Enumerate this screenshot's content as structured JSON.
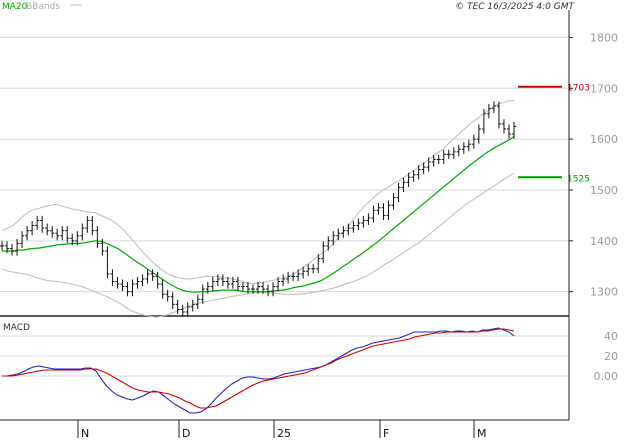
{
  "header": {
    "legend_ma": "MA20",
    "legend_bb": "BBands",
    "copyright": "© TEC 16/3/2025 4:0 GMT"
  },
  "colors": {
    "price": "#111111",
    "ma": "#00aa00",
    "bands": "#bbbbbb",
    "resistance": "#cc0000",
    "support": "#009900",
    "macd": "#2222cc",
    "signal": "#cc0000",
    "grid": "#d8d8d8",
    "axis_text": "#9a9a9a"
  },
  "chart_data": [
    {
      "type": "line",
      "panel": "price",
      "subtype": "ohlc-bars",
      "ylim": [
        1260,
        1850
      ],
      "yticks": [
        "1300",
        "1400",
        "1500",
        "1600",
        "1700",
        "1800"
      ],
      "xticks": [
        "N",
        "D",
        "25",
        "F",
        "M"
      ],
      "levels": [
        {
          "name": "resistance",
          "value": 1703,
          "label": "1703"
        },
        {
          "name": "support",
          "value": 1525,
          "label": "1525"
        }
      ],
      "series": [
        {
          "values": [
            1390,
            1385,
            1380,
            1395,
            1410,
            1420,
            1430,
            1440,
            1425,
            1420,
            1415,
            1410,
            1420,
            1405,
            1400,
            1410,
            1425,
            1440,
            1420,
            1395,
            1380,
            1335,
            1320,
            1315,
            1310,
            1300,
            1315,
            1320,
            1325,
            1335,
            1330,
            1315,
            1295,
            1290,
            1275,
            1265,
            1260,
            1270,
            1275,
            1285,
            1305,
            1310,
            1320,
            1325,
            1320,
            1315,
            1320,
            1310,
            1310,
            1305,
            1305,
            1310,
            1305,
            1300,
            1310,
            1320,
            1325,
            1330,
            1330,
            1335,
            1340,
            1345,
            1345,
            1365,
            1390,
            1400,
            1410,
            1415,
            1420,
            1425,
            1430,
            1435,
            1440,
            1445,
            1460,
            1465,
            1450,
            1470,
            1485,
            1505,
            1515,
            1525,
            1530,
            1540,
            1545,
            1555,
            1560,
            1560,
            1570,
            1570,
            1575,
            1580,
            1585,
            1590,
            1600,
            1620,
            1650,
            1660,
            1665,
            1630,
            1620,
            1610,
            1625
          ]
        },
        {
          "name": "MA20",
          "values": [
            1380,
            1380,
            1380,
            1382,
            1382,
            1384,
            1385,
            1386,
            1388,
            1390,
            1392,
            1393,
            1394,
            1395,
            1395,
            1396,
            1398,
            1400,
            1399,
            1395,
            1390,
            1385,
            1378,
            1370,
            1362,
            1355,
            1348,
            1340,
            1333,
            1325,
            1318,
            1312,
            1306,
            1302,
            1300,
            1299,
            1300,
            1300,
            1301,
            1302,
            1303,
            1303,
            1303,
            1302,
            1300,
            1300,
            1300,
            1300,
            1300,
            1301,
            1302,
            1303,
            1305,
            1308,
            1310,
            1312,
            1315,
            1318,
            1322,
            1328,
            1335,
            1342,
            1350,
            1357,
            1365,
            1372,
            1380,
            1388,
            1396,
            1405,
            1414,
            1423,
            1432,
            1441,
            1450,
            1459,
            1468,
            1477,
            1486,
            1495,
            1504,
            1513,
            1522,
            1531,
            1540,
            1549,
            1557,
            1565,
            1573,
            1580,
            1586,
            1592,
            1598,
            1605
          ]
        },
        {
          "name": "BBands upper",
          "values": [
            1420,
            1425,
            1430,
            1440,
            1450,
            1458,
            1462,
            1465,
            1468,
            1470,
            1472,
            1468,
            1465,
            1462,
            1460,
            1458,
            1456,
            1455,
            1450,
            1445,
            1440,
            1432,
            1422,
            1410,
            1398,
            1385,
            1373,
            1362,
            1352,
            1343,
            1336,
            1331,
            1327,
            1325,
            1325,
            1326,
            1328,
            1330,
            1330,
            1330,
            1328,
            1326,
            1325,
            1322,
            1318,
            1316,
            1316,
            1318,
            1320,
            1322,
            1324,
            1326,
            1330,
            1335,
            1342,
            1350,
            1358,
            1366,
            1374,
            1382,
            1392,
            1405,
            1418,
            1430,
            1445,
            1458,
            1470,
            1480,
            1490,
            1498,
            1505,
            1512,
            1518,
            1525,
            1532,
            1540,
            1548,
            1556,
            1564,
            1572,
            1580,
            1590,
            1600,
            1610,
            1620,
            1630,
            1638,
            1646,
            1654,
            1662,
            1668,
            1672,
            1675,
            1676
          ]
        },
        {
          "name": "BBands lower",
          "values": [
            1345,
            1340,
            1338,
            1336,
            1334,
            1330,
            1326,
            1323,
            1321,
            1320,
            1318,
            1316,
            1313,
            1310,
            1305,
            1300,
            1295,
            1290,
            1284,
            1278,
            1270,
            1262,
            1258,
            1254,
            1252,
            1250,
            1252,
            1255,
            1260,
            1265,
            1270,
            1275,
            1278,
            1280,
            1283,
            1285,
            1287,
            1290,
            1292,
            1294,
            1296,
            1298,
            1298,
            1298,
            1297,
            1296,
            1295,
            1295,
            1295,
            1296,
            1298,
            1300,
            1302,
            1305,
            1308,
            1312,
            1316,
            1320,
            1325,
            1330,
            1337,
            1345,
            1353,
            1360,
            1368,
            1376,
            1384,
            1392,
            1400,
            1410,
            1420,
            1430,
            1440,
            1450,
            1460,
            1470,
            1478,
            1486,
            1494,
            1502,
            1510,
            1518,
            1526,
            1533
          ]
        }
      ]
    },
    {
      "type": "line",
      "panel": "macd",
      "title": "MACD",
      "ylim": [
        -42,
        58
      ],
      "yticks": [
        "0.00",
        "20",
        "40"
      ],
      "series": [
        {
          "values": [
            0,
            0,
            1,
            2,
            4,
            7,
            9,
            10,
            9,
            8,
            7,
            7,
            7,
            7,
            7,
            7,
            8,
            8,
            5,
            -3,
            -10,
            -15,
            -19,
            -21,
            -23,
            -24,
            -22,
            -20,
            -17,
            -15,
            -16,
            -20,
            -24,
            -28,
            -31,
            -34,
            -37,
            -37,
            -36,
            -33,
            -28,
            -22,
            -17,
            -12,
            -8,
            -5,
            -2,
            -1,
            -1,
            -2,
            -3,
            -3,
            -2,
            0,
            2,
            3,
            4,
            5,
            6,
            7,
            8,
            9,
            11,
            14,
            17,
            20,
            23,
            26,
            28,
            29,
            31,
            33,
            34,
            35,
            36,
            37,
            38,
            40,
            42,
            44,
            44,
            44,
            44,
            44,
            45,
            45,
            44,
            45,
            45,
            44,
            45,
            44,
            46,
            46,
            47,
            48,
            46,
            44,
            40
          ]
        },
        {
          "values": [
            0,
            0,
            0,
            1,
            2,
            3,
            4,
            5,
            6,
            6,
            6,
            6,
            6,
            6,
            6,
            6,
            7,
            7,
            7,
            5,
            3,
            0,
            -3,
            -6,
            -9,
            -12,
            -14,
            -15,
            -16,
            -16,
            -16,
            -17,
            -18,
            -20,
            -22,
            -25,
            -27,
            -30,
            -32,
            -32,
            -31,
            -30,
            -27,
            -24,
            -21,
            -18,
            -15,
            -12,
            -9,
            -7,
            -5,
            -4,
            -3,
            -2,
            -1,
            0,
            1,
            2,
            3,
            5,
            7,
            9,
            11,
            13,
            16,
            18,
            20,
            22,
            24,
            26,
            28,
            30,
            31,
            32,
            33,
            34,
            35,
            36,
            37,
            39,
            40,
            41,
            42,
            43,
            43,
            44,
            44,
            44,
            44,
            44,
            44,
            44,
            45,
            45,
            46,
            47,
            47,
            46,
            45
          ]
        }
      ]
    }
  ]
}
